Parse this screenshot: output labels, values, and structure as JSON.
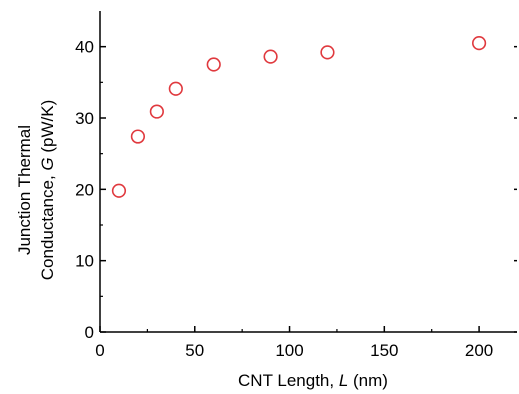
{
  "chart_data": {
    "type": "scatter",
    "xlabel": "CNT Length, ",
    "xlabel_symbol": "L",
    "xlabel_unit": " (nm)",
    "ylabel_line1": "Junction Thermal",
    "ylabel_line2_prefix": "Conductance, ",
    "ylabel_symbol": "G",
    "ylabel_unit": " (pW/K)",
    "xlim": [
      0,
      220
    ],
    "ylim": [
      0,
      45
    ],
    "xticks": [
      0,
      50,
      100,
      150,
      200
    ],
    "yticks": [
      0,
      10,
      20,
      30,
      40
    ],
    "grid": false,
    "marker_color": "#e0393e",
    "marker": "open-circle",
    "x": [
      10,
      20,
      30,
      40,
      60,
      90,
      120,
      200
    ],
    "y": [
      19.8,
      27.4,
      30.9,
      34.1,
      37.5,
      38.6,
      39.2,
      40.5
    ]
  }
}
